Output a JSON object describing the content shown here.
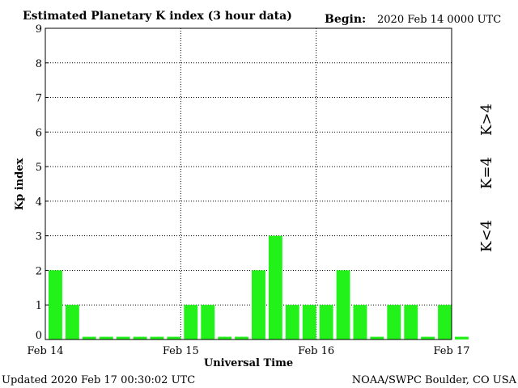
{
  "header": {
    "title": "Estimated Planetary K index (3 hour data)",
    "begin_label": "Begin:",
    "begin_value": "2020 Feb 14 0000 UTC"
  },
  "footer": {
    "updated": "Updated 2020 Feb 17 00:30:02 UTC",
    "source": "NOAA/SWPC Boulder, CO USA"
  },
  "legend": [
    {
      "label": "K>4",
      "color": "#ff2a00"
    },
    {
      "label": "K=4",
      "color": "#ffd200"
    },
    {
      "label": "K<4",
      "color": "#22f21a"
    }
  ],
  "chart_data": {
    "type": "bar",
    "title": "Estimated Planetary K index (3 hour data)",
    "xlabel": "Universal Time",
    "ylabel": "Kp index",
    "ylim": [
      0,
      9
    ],
    "yticks": [
      "0",
      "1",
      "2",
      "3",
      "4",
      "5",
      "6",
      "7",
      "8",
      "9"
    ],
    "xtick_labels": [
      "Feb 14",
      "Feb 15",
      "Feb 16",
      "Feb 17"
    ],
    "grid": "dotted",
    "bar_color": "#22f21a",
    "values": [
      2,
      1,
      0,
      0,
      0,
      0,
      0,
      0,
      1,
      1,
      0,
      0,
      2,
      3,
      1,
      1,
      1,
      2,
      1,
      0,
      1,
      1,
      0,
      1,
      0
    ]
  }
}
